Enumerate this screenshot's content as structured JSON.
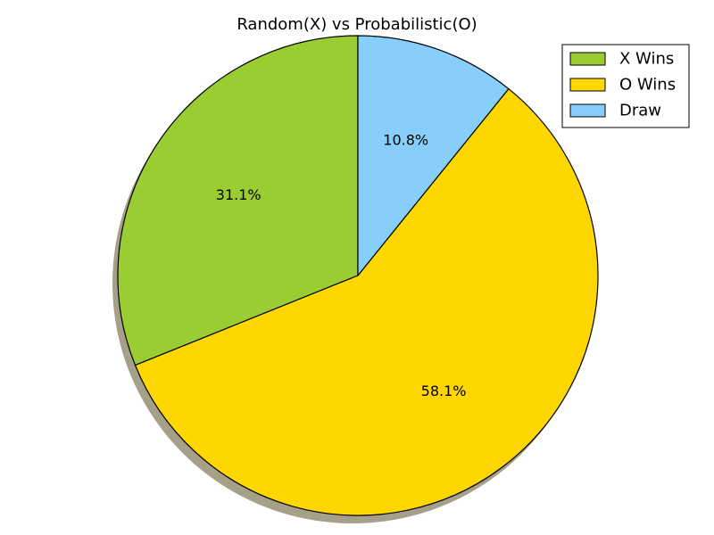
{
  "chart_data": {
    "type": "pie",
    "title": "Random(X) vs Probabilistic(O)",
    "slices": [
      {
        "label": "X Wins",
        "value": 31.1,
        "display": "31.1%",
        "color": "#9ACD32"
      },
      {
        "label": "O Wins",
        "value": 58.1,
        "display": "58.1%",
        "color": "#FFD700"
      },
      {
        "label": "Draw",
        "value": 10.8,
        "display": "10.8%",
        "color": "#87CEFA"
      }
    ],
    "start_angle_deg": 90,
    "direction": "counterclockwise",
    "shadow": true,
    "legend_position": "top-right"
  }
}
